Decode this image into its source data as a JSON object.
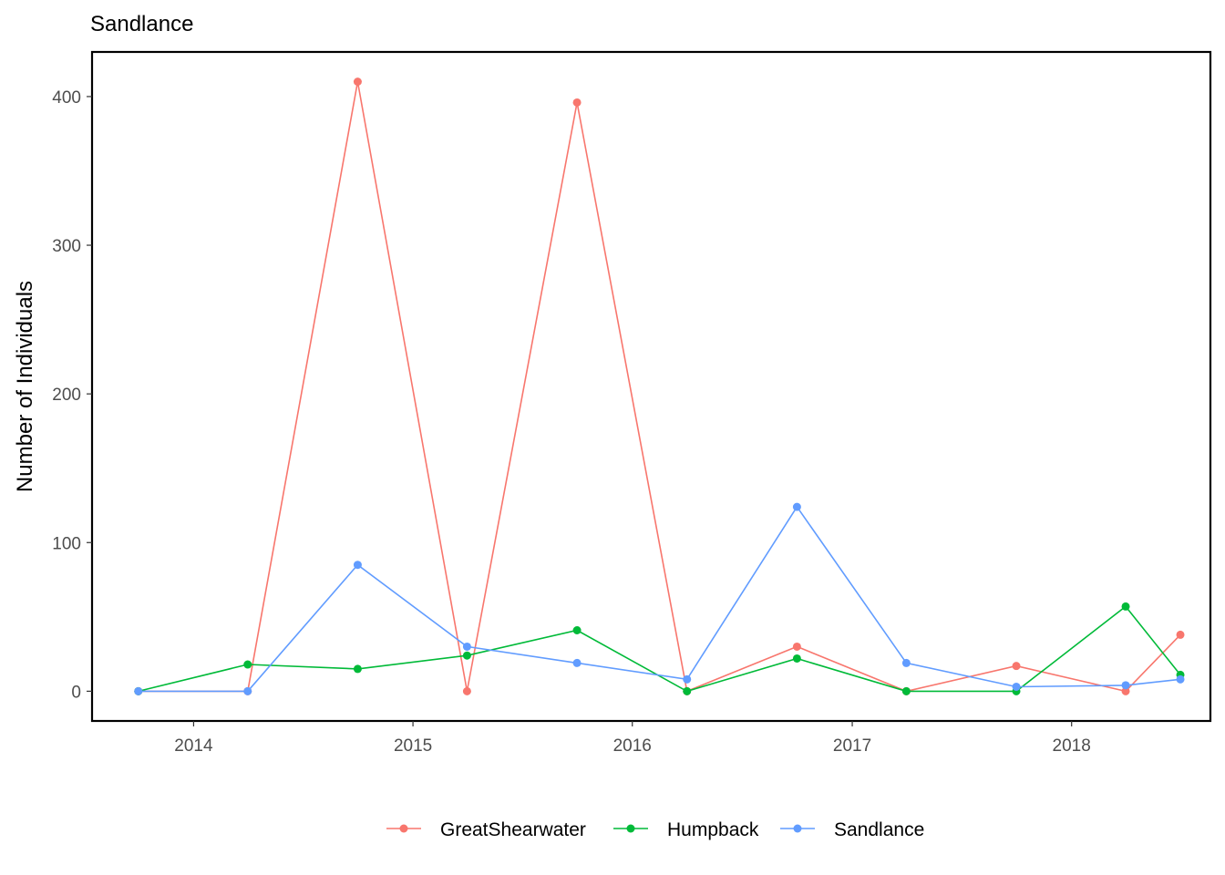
{
  "chart_data": {
    "type": "line",
    "title": "Sandlance",
    "xlabel": "",
    "ylabel": "Number of Individuals",
    "x_axis_type": "date",
    "x_ticks": [
      "2014",
      "2015",
      "2016",
      "2017",
      "2018"
    ],
    "y_ticks": [
      0,
      100,
      200,
      300,
      400
    ],
    "ylim": [
      -20,
      430
    ],
    "xlim": [
      "2013-07-16",
      "2018-08-20"
    ],
    "grid": false,
    "legend_position": "bottom",
    "x": [
      "2013-10-01",
      "2014-04-01",
      "2014-10-01",
      "2015-04-01",
      "2015-10-01",
      "2016-04-01",
      "2016-10-01",
      "2017-04-01",
      "2017-10-01",
      "2018-04-01",
      "2018-07-01"
    ],
    "series": [
      {
        "name": "GreatShearwater",
        "color": "#F8766D",
        "values": [
          0,
          0,
          410,
          0,
          396,
          0,
          30,
          0,
          17,
          0,
          38
        ]
      },
      {
        "name": "Humpback",
        "color": "#00BA38",
        "values": [
          0,
          18,
          15,
          24,
          41,
          0,
          22,
          0,
          0,
          57,
          11
        ]
      },
      {
        "name": "Sandlance",
        "color": "#619CFF",
        "values": [
          0,
          0,
          85,
          30,
          19,
          8,
          124,
          19,
          3,
          4,
          8
        ]
      }
    ]
  }
}
